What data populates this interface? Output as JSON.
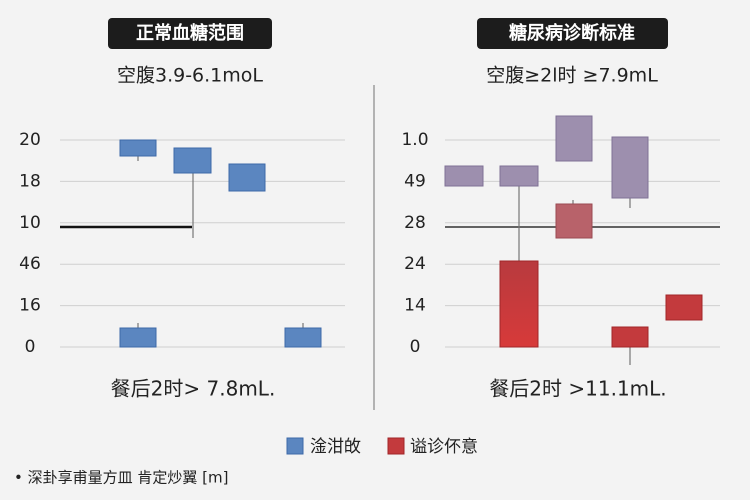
{
  "panels": [
    {
      "title": "正常血糖范围",
      "subtitle": "空腹3.9-6.1moL",
      "tick_labels": [
        "20",
        "18",
        "10",
        "46",
        "16",
        "0"
      ],
      "footer": "餐后2时> 7.8mL."
    },
    {
      "title": "糖尿病诊断标准",
      "subtitle": "空腹≥2l时 ≥7.9mL",
      "tick_labels": [
        "1.0",
        "49",
        "28",
        "24",
        "14",
        "0"
      ],
      "footer": "餐后2时 >11.1mL."
    }
  ],
  "legend": [
    "淦泔敀",
    "谥诊伓意"
  ],
  "note": "• 深卦享甫量方皿 肯定炒翼 [m]"
}
